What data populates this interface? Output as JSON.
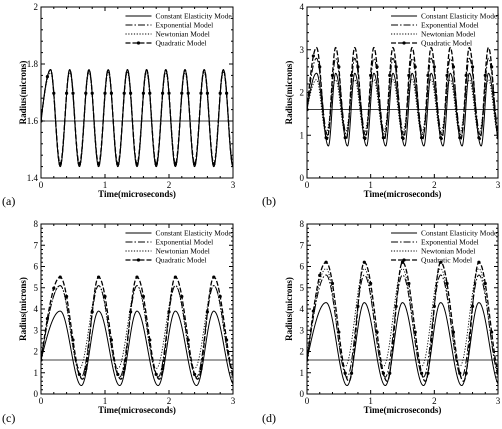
{
  "chart_data": [
    {
      "panel_label": "(a)",
      "type": "line",
      "xlabel": "Time(microseconds)",
      "ylabel": "Radius(microns)",
      "xlim": [
        0,
        3
      ],
      "ylim": [
        1.4,
        2.0
      ],
      "xticks": [
        "0",
        "1",
        "2",
        "3"
      ],
      "yticks": [
        "1.4",
        "1.6",
        "1.8",
        "2"
      ],
      "reference_line_y": 1.6,
      "legend_position": "top-right",
      "oscillation_period": 0.3,
      "series": [
        {
          "name": "Constant Elasticity Model",
          "style": "solid",
          "min": 1.44,
          "max": 1.78,
          "rise_fraction": 0.5
        },
        {
          "name": "Exponential Model",
          "style": "dashdot",
          "min": 1.44,
          "max": 1.78,
          "rise_fraction": 0.5
        },
        {
          "name": "Newtonian Model",
          "style": "dotted",
          "min": 1.44,
          "max": 1.77,
          "rise_fraction": 0.5
        },
        {
          "name": "Quadratic Model",
          "style": "dashed-marker",
          "min": 1.45,
          "max": 1.78,
          "rise_fraction": 0.5
        }
      ]
    },
    {
      "panel_label": "(b)",
      "type": "line",
      "xlabel": "Time(microseconds)",
      "ylabel": "Radius(microns)",
      "xlim": [
        0,
        3
      ],
      "ylim": [
        0,
        4
      ],
      "xticks": [
        "0",
        "1",
        "2",
        "3"
      ],
      "yticks": [
        "0",
        "1",
        "2",
        "3",
        "4"
      ],
      "reference_line_y": 1.6,
      "legend_position": "top-right",
      "oscillation_period": 0.3,
      "series": [
        {
          "name": "Constant Elasticity Model",
          "style": "solid",
          "min": 0.75,
          "max": 2.45,
          "rise_fraction": 0.38
        },
        {
          "name": "Exponential Model",
          "style": "dashdot",
          "min": 1.0,
          "max": 2.8,
          "rise_fraction": 0.42
        },
        {
          "name": "Newtonian Model",
          "style": "dotted",
          "min": 1.05,
          "max": 2.3,
          "rise_fraction": 0.5
        },
        {
          "name": "Quadratic Model",
          "style": "dashed-marker",
          "min": 0.9,
          "max": 3.05,
          "rise_fraction": 0.45
        }
      ]
    },
    {
      "panel_label": "(c)",
      "type": "line",
      "xlabel": "Time(microseconds)",
      "ylabel": "Radius(microns)",
      "xlim": [
        0,
        3
      ],
      "ylim": [
        0,
        8
      ],
      "xticks": [
        "0",
        "1",
        "2",
        "3"
      ],
      "yticks": [
        "0",
        "1",
        "2",
        "3",
        "4",
        "5",
        "6",
        "7",
        "8"
      ],
      "reference_line_y": 1.6,
      "legend_position": "top-right",
      "oscillation_period": 0.6,
      "series": [
        {
          "name": "Constant Elasticity Model",
          "style": "solid",
          "min": 0.4,
          "max": 3.9,
          "rise_fraction": 0.45
        },
        {
          "name": "Exponential Model",
          "style": "dashdot",
          "min": 0.8,
          "max": 5.1,
          "rise_fraction": 0.45
        },
        {
          "name": "Newtonian Model",
          "style": "dotted",
          "min": 1.2,
          "max": 5.1,
          "rise_fraction": 0.5
        },
        {
          "name": "Quadratic Model",
          "style": "dashed-marker",
          "min": 0.7,
          "max": 5.5,
          "rise_fraction": 0.42
        }
      ]
    },
    {
      "panel_label": "(d)",
      "type": "line",
      "xlabel": "Time(microseconds)",
      "ylabel": "Radius(microns)",
      "xlim": [
        0,
        3
      ],
      "ylim": [
        0,
        8
      ],
      "xticks": [
        "0",
        "1",
        "2",
        "3"
      ],
      "yticks": [
        "0",
        "1",
        "2",
        "3",
        "4",
        "5",
        "6",
        "7",
        "8"
      ],
      "reference_line_y": 1.6,
      "legend_position": "top-right",
      "oscillation_period": 0.6,
      "series": [
        {
          "name": "Constant Elasticity Model",
          "style": "solid",
          "min": 0.4,
          "max": 4.3,
          "rise_fraction": 0.45
        },
        {
          "name": "Exponential Model",
          "style": "dashdot",
          "min": 0.8,
          "max": 5.6,
          "rise_fraction": 0.45
        },
        {
          "name": "Newtonian Model",
          "style": "dotted",
          "min": 1.3,
          "max": 5.9,
          "rise_fraction": 0.5
        },
        {
          "name": "Quadratic Model",
          "style": "dashed-marker",
          "min": 0.6,
          "max": 6.2,
          "rise_fraction": 0.4
        }
      ]
    }
  ]
}
